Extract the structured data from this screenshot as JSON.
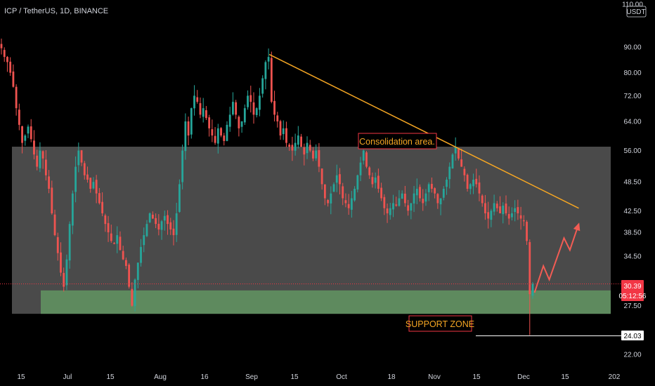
{
  "header": {
    "symbol": "ICP / TetherUS, 1D, BINANCE"
  },
  "currency_label": "USDT",
  "colors": {
    "bg": "#000000",
    "up": "#26a69a",
    "down": "#ef5350",
    "zone_gray": "#4a4a4a",
    "support_green": "#5e8a5e",
    "trendline": "#f5a623",
    "projection": "#f25c54",
    "axis_text": "#d1d4dc",
    "price_badge": "#f23645"
  },
  "price_axis": {
    "ticks": [
      "110.00",
      "90.00",
      "80.00",
      "72.00",
      "64.00",
      "56.00",
      "48.50",
      "42.50",
      "38.50",
      "34.50",
      "27.50",
      "24.03",
      "22.00"
    ],
    "scale": "log",
    "range": [
      21,
      115
    ]
  },
  "time_axis": {
    "ticks": [
      "15",
      "Jul",
      "15",
      "Aug",
      "16",
      "Sep",
      "15",
      "Oct",
      "18",
      "Nov",
      "15",
      "Dec",
      "15",
      "202"
    ]
  },
  "current_price": {
    "value": "30.39",
    "countdown": "05:12:56"
  },
  "low_marker": {
    "value": "24.03"
  },
  "annotations": {
    "consolidation_label": "Consolidation area.",
    "support_label": "SUPPORT ZONE"
  },
  "zones": {
    "consolidation": {
      "low": 26.5,
      "high": 57.0
    },
    "support": {
      "low": 26.5,
      "high": 29.5
    }
  },
  "trendline": {
    "from": {
      "date": "Sep 7",
      "price": 87.0
    },
    "to": {
      "date": "Dec 21",
      "price": 43.0
    }
  },
  "projection_path": [
    {
      "date": "Dec 6",
      "price": 29.2
    },
    {
      "date": "Dec 9",
      "price": 33.0
    },
    {
      "date": "Dec 11",
      "price": 31.0
    },
    {
      "date": "Dec 16",
      "price": 37.5
    },
    {
      "date": "Dec 18",
      "price": 35.5
    },
    {
      "date": "Dec 21",
      "price": 40.0
    }
  ],
  "chart_data": {
    "type": "candlestick",
    "title": "ICP / TetherUS, 1D, BINANCE",
    "ylim": [
      21,
      115
    ],
    "yscale": "log",
    "x_range": [
      "Jun 10",
      "Jan 1"
    ],
    "series": [
      {
        "values": [
          89.5,
          86.0,
          84.0,
          80.0,
          75.0,
          68.0,
          63.0,
          58.0,
          60.0,
          62.5,
          59.0,
          55.0,
          52.0,
          56.0,
          54.0,
          50.0,
          47.0,
          42.0,
          38.0,
          35.0,
          32.0,
          30.0,
          34.0,
          40.0,
          46.0,
          52.0,
          56.0,
          53.0,
          50.0,
          49.0,
          47.0,
          48.5,
          46.0,
          44.0,
          42.0,
          40.0,
          38.5,
          37.0,
          36.5,
          38.0,
          35.5,
          34.0,
          33.0,
          30.0,
          27.5,
          31.0,
          33.5,
          36.0,
          38.0,
          40.0,
          42.0,
          41.0,
          40.0,
          39.0,
          40.5,
          41.5,
          40.0,
          39.0,
          38.0,
          42.0,
          48.0,
          56.0,
          64.0,
          60.0,
          68.0,
          72.0,
          70.0,
          66.0,
          68.0,
          65.0,
          62.0,
          60.0,
          58.0,
          62.0,
          60.0,
          58.5,
          63.0,
          66.0,
          70.0,
          66.0,
          62.0,
          64.0,
          68.0,
          72.0,
          70.0,
          66.0,
          68.0,
          72.0,
          78.0,
          84.0,
          86.0,
          70.0,
          66.0,
          64.0,
          60.0,
          62.0,
          58.0,
          57.0,
          56.0,
          58.0,
          60.0,
          57.0,
          55.0,
          58.0,
          56.0,
          54.0,
          56.0,
          52.0,
          48.0,
          45.0,
          44.0,
          46.0,
          48.0,
          50.0,
          48.0,
          45.0,
          44.0,
          43.0,
          45.0,
          47.0,
          50.0,
          53.0,
          56.0,
          52.0,
          50.0,
          48.0,
          49.5,
          47.0,
          45.0,
          43.0,
          42.0,
          43.0,
          44.0,
          43.5,
          45.0,
          46.0,
          44.0,
          42.5,
          44.0,
          46.0,
          47.0,
          45.0,
          44.0,
          46.0,
          48.0,
          47.0,
          46.0,
          44.0,
          45.0,
          47.0,
          49.0,
          52.0,
          55.0,
          57.0,
          54.0,
          52.0,
          50.0,
          47.0,
          48.0,
          49.0,
          48.0,
          46.0,
          44.0,
          42.0,
          41.0,
          42.5,
          44.0,
          43.0,
          42.0,
          43.5,
          42.0,
          41.0,
          42.0,
          43.0,
          42.0,
          41.0,
          40.5,
          37.0,
          29.0,
          30.4
        ]
      }
    ]
  }
}
